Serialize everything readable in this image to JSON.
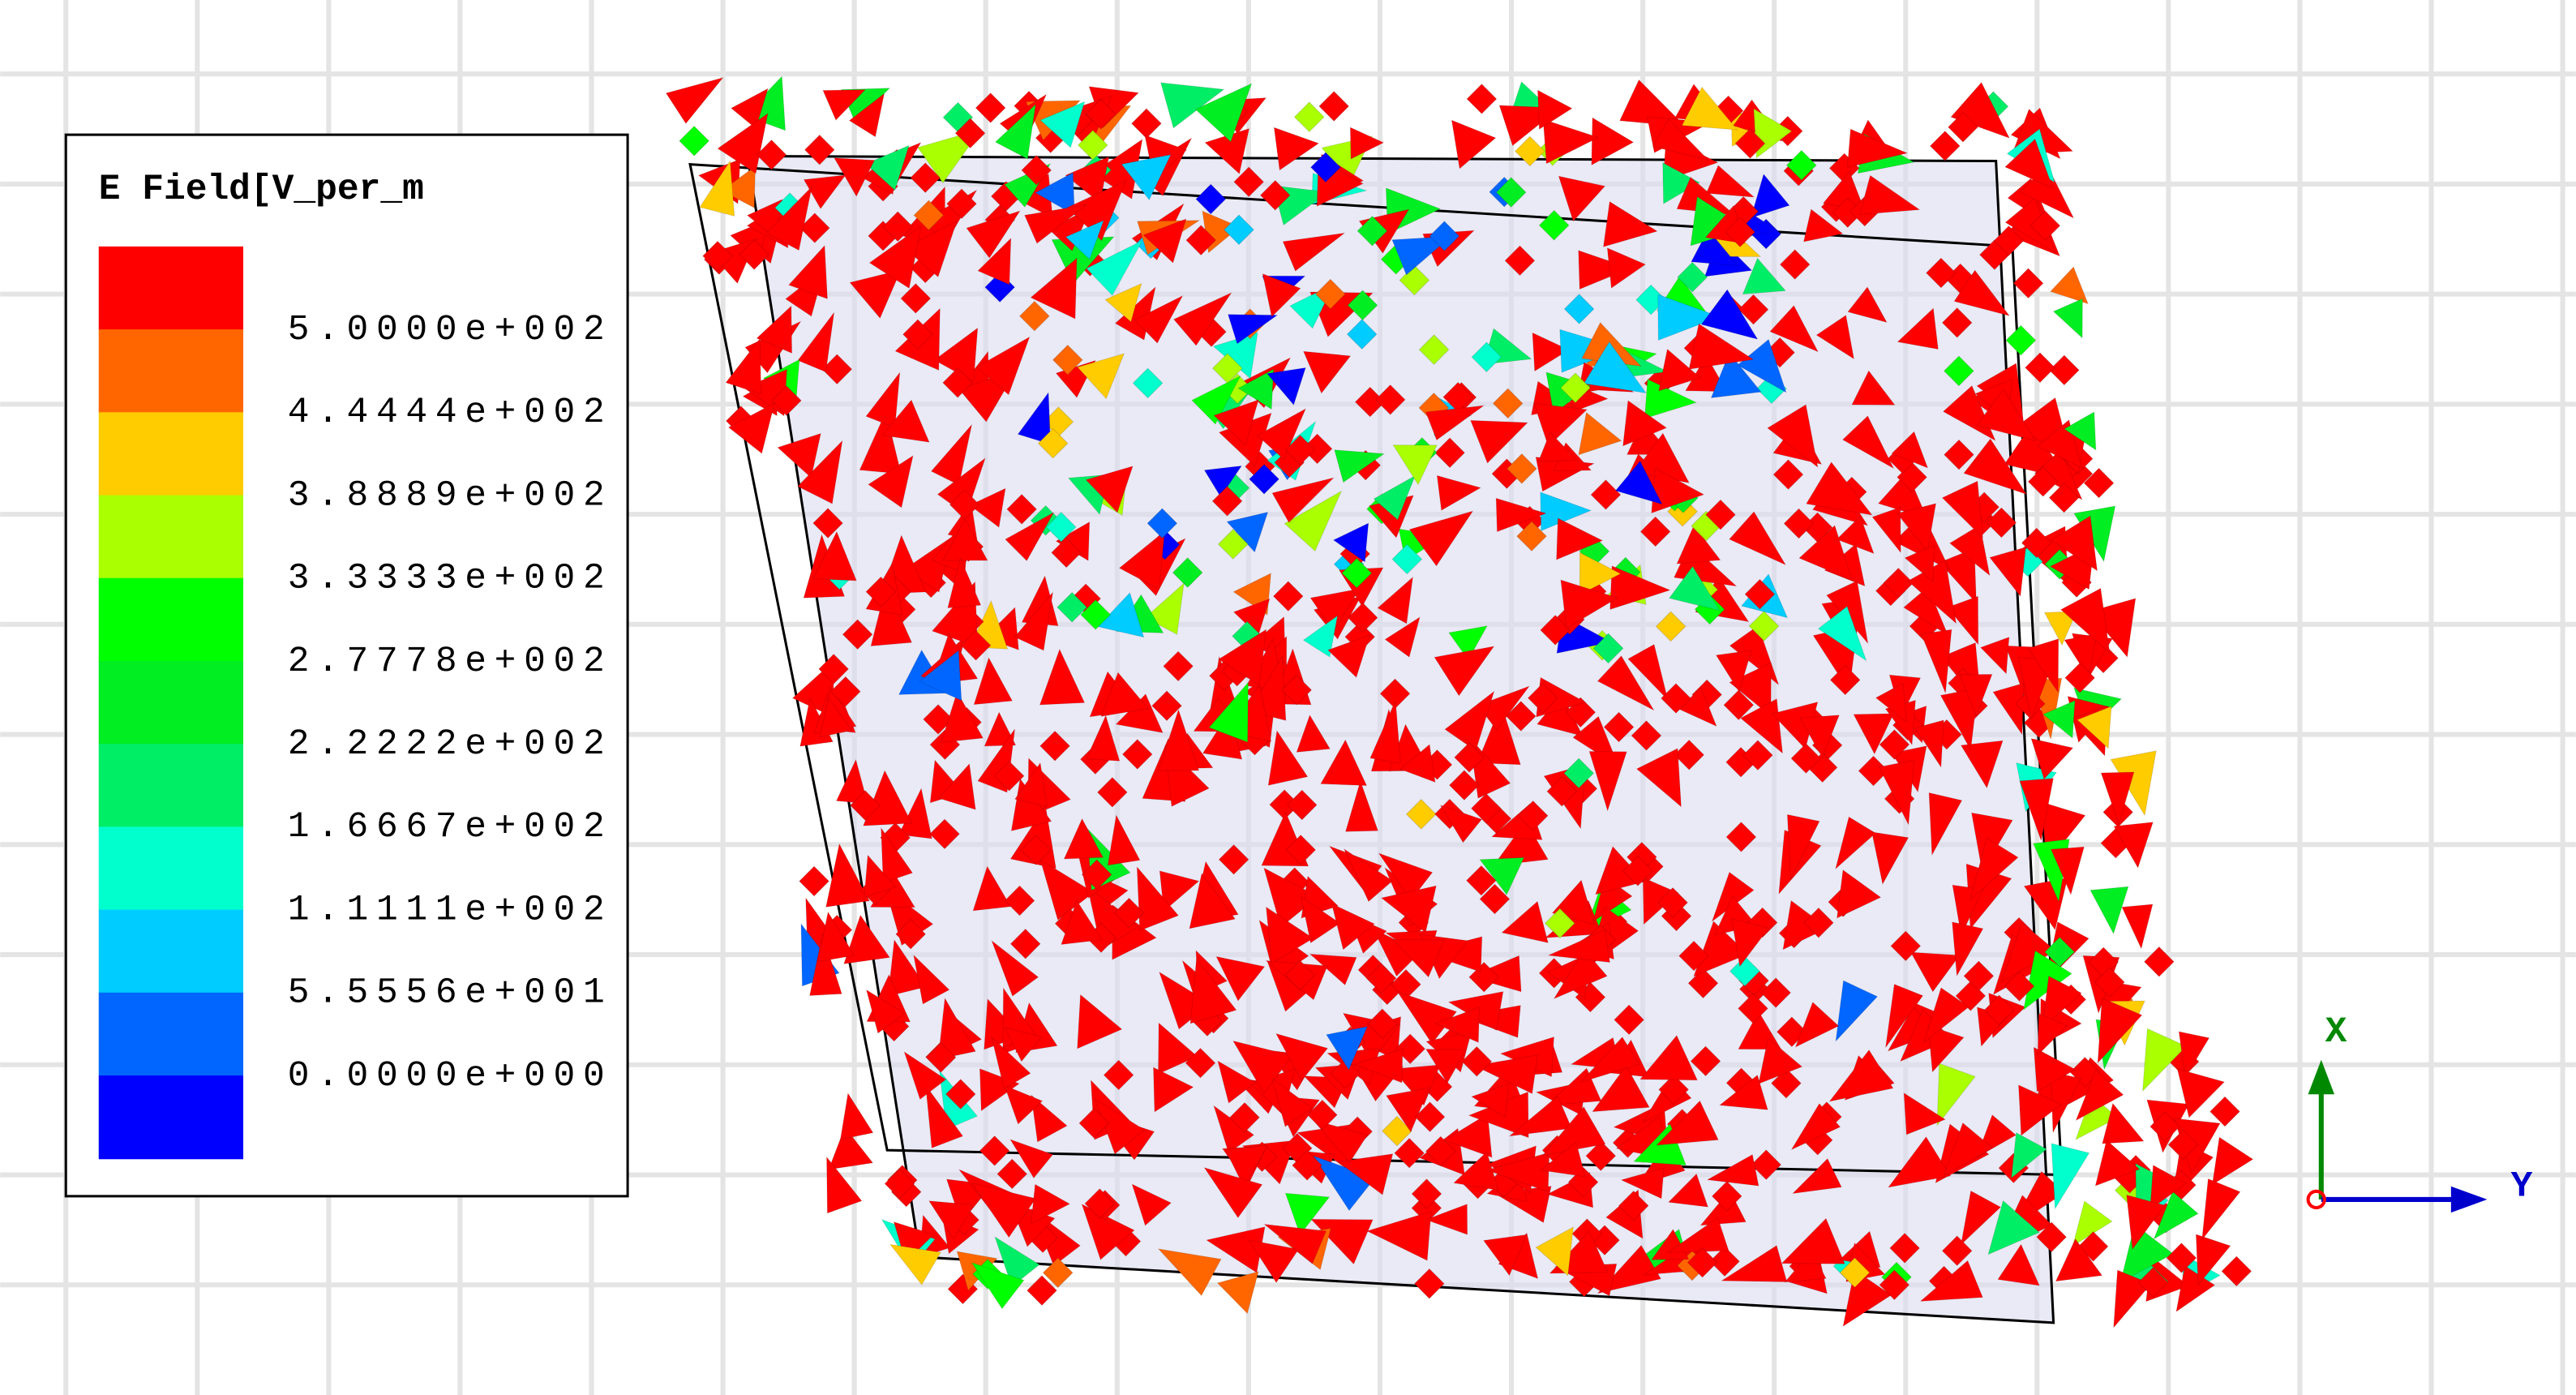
{
  "legend": {
    "title": "E Field[V_per_m",
    "bands": [
      "#ff0000",
      "#ff6600",
      "#ffcc00",
      "#aaff00",
      "#00ff00",
      "#00ee22",
      "#00ee66",
      "#00ffcc",
      "#00ccff",
      "#0066ff",
      "#0000ff"
    ],
    "labels": [
      "5.0000e+002",
      "4.4444e+002",
      "3.8889e+002",
      "3.3333e+002",
      "2.7778e+002",
      "2.2222e+002",
      "1.6667e+002",
      "1.1111e+002",
      "5.5556e+001",
      "0.0000e+000"
    ]
  },
  "axes": {
    "x_label": "X",
    "y_label": "Y"
  }
}
